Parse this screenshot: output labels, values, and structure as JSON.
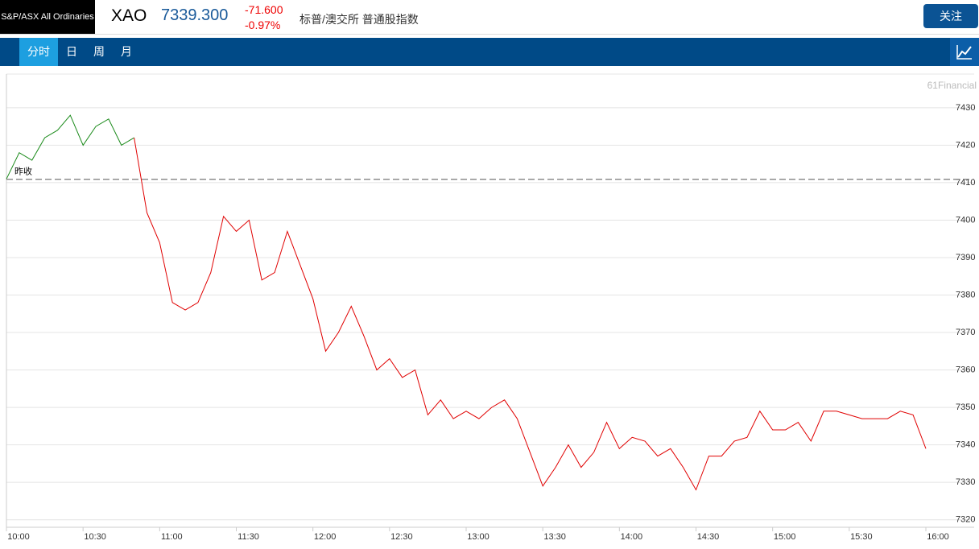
{
  "header": {
    "index_name": "S&P/ASX All Ordinaries",
    "symbol": "XAO",
    "price": "7339.300",
    "change": "-71.600",
    "change_pct": "-0.97%",
    "description": "标普/澳交所 普通股指数",
    "follow_button": "关注",
    "tabs": [
      "分时",
      "日",
      "周",
      "月"
    ],
    "watermark": "61Financial"
  },
  "chart_data": {
    "type": "line",
    "categories": [
      "10:00",
      null,
      null,
      null,
      null,
      null,
      "10:30",
      null,
      null,
      null,
      null,
      null,
      "11:00",
      null,
      null,
      null,
      null,
      null,
      "11:30",
      null,
      null,
      null,
      null,
      null,
      "12:00",
      null,
      null,
      null,
      null,
      null,
      "12:30",
      null,
      null,
      null,
      null,
      null,
      "13:00",
      null,
      null,
      null,
      null,
      null,
      "13:30",
      null,
      null,
      null,
      null,
      null,
      "14:00",
      null,
      null,
      null,
      null,
      null,
      "14:30",
      null,
      null,
      null,
      null,
      null,
      "15:00",
      null,
      null,
      null,
      null,
      null,
      "15:30",
      null,
      null,
      null,
      null,
      null,
      "16:00"
    ],
    "series": [
      {
        "color": "#1a8a1a",
        "values": [
          7411,
          7418,
          7416,
          7422,
          7424,
          7428,
          7420,
          7425,
          7427,
          7420,
          7422,
          null,
          null,
          null,
          null,
          null,
          null,
          null,
          null,
          null,
          null,
          null,
          null,
          null,
          null,
          null,
          null,
          null,
          null,
          null,
          null,
          null,
          null,
          null,
          null,
          null,
          null,
          null,
          null,
          null,
          null,
          null,
          null,
          null,
          null,
          null,
          null,
          null,
          null,
          null,
          null,
          null,
          null,
          null,
          null,
          null,
          null,
          null,
          null,
          null,
          null,
          null,
          null,
          null,
          null,
          null,
          null,
          null,
          null,
          null,
          null,
          null,
          null
        ]
      },
      {
        "color": "#e00000",
        "values": [
          null,
          null,
          null,
          null,
          null,
          null,
          null,
          null,
          null,
          null,
          7422,
          7402,
          7394,
          7378,
          7376,
          7378,
          7386,
          7401,
          7397,
          7400,
          7384,
          7386,
          7397,
          7388,
          7379,
          7365,
          7370,
          7377,
          7369,
          7360,
          7363,
          7358,
          7360,
          7348,
          7352,
          7347,
          7349,
          7347,
          7350,
          7352,
          7347,
          7338,
          7329,
          7334,
          7340,
          7334,
          7338,
          7346,
          7339,
          7342,
          7341,
          7337,
          7339,
          7334,
          7328,
          7337,
          7337,
          7341,
          7342,
          7349,
          7344,
          7344,
          7346,
          7341,
          7349,
          7349,
          7348,
          7347,
          7347,
          7347,
          7349,
          7348,
          7339
        ]
      }
    ],
    "prev_close": 7410.9,
    "prev_close_label": "昨收",
    "ylim": [
      7318,
      7439
    ],
    "yticks": [
      7320,
      7330,
      7340,
      7350,
      7360,
      7370,
      7380,
      7390,
      7400,
      7410,
      7420,
      7430
    ],
    "grid": true
  }
}
